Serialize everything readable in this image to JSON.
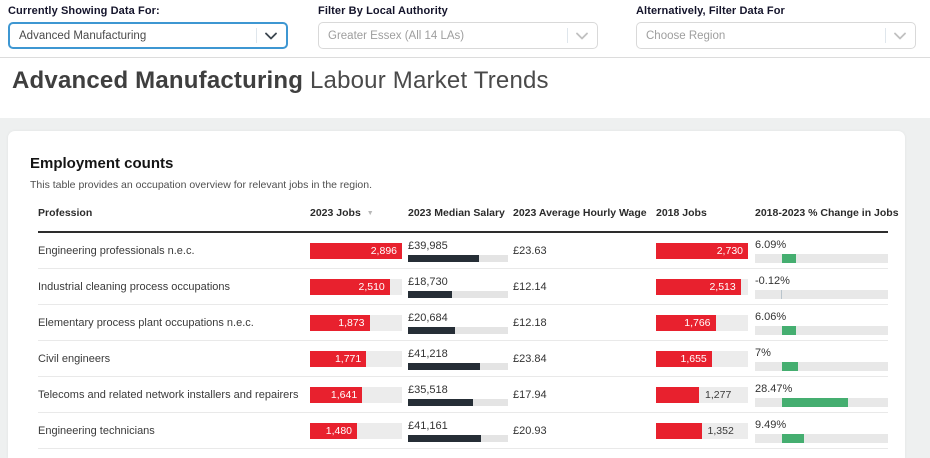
{
  "filters": [
    {
      "label": "Currently Showing Data For:",
      "value": "Advanced Manufacturing"
    },
    {
      "label": "Filter By Local Authority",
      "value": "Greater Essex (All 14 LAs)"
    },
    {
      "label": "Alternatively, Filter Data For",
      "value": "Choose Region"
    }
  ],
  "page_title": {
    "bold": "Advanced Manufacturing",
    "rest": " Labour Market Trends"
  },
  "section": {
    "heading": "Employment counts",
    "subheading": "This table provides an occupation overview for relevant jobs in the region."
  },
  "table": {
    "columns": {
      "profession": "Profession",
      "jobs2023": "2023 Jobs",
      "salary": "2023 Median Salary",
      "hourly": "2023 Average Hourly Wage",
      "jobs2018": "2018 Jobs",
      "change": "2018-2023 % Change in Jobs"
    },
    "sorted_by": "2023 Jobs",
    "sort_direction": "descending",
    "rows": [
      {
        "profession": "Engineering professionals n.e.c.",
        "jobs2023": {
          "label": "2,896",
          "pct": 100,
          "inside": true
        },
        "salary": {
          "label": "£39,985",
          "pct": 71
        },
        "hourly": "£23.63",
        "jobs2018": {
          "label": "2,730",
          "pct": 100,
          "inside": true
        },
        "change": {
          "label": "6.09%",
          "width_pct": 10.7,
          "negative": false
        }
      },
      {
        "profession": "Industrial cleaning process occupations",
        "jobs2023": {
          "label": "2,510",
          "pct": 86.7,
          "inside": true
        },
        "salary": {
          "label": "£18,730",
          "pct": 44
        },
        "hourly": "£12.14",
        "jobs2018": {
          "label": "2,513",
          "pct": 92.1,
          "inside": true
        },
        "change": {
          "label": "-0.12%",
          "width_pct": 0.8,
          "negative": true
        }
      },
      {
        "profession": "Elementary process plant occupations n.e.c.",
        "jobs2023": {
          "label": "1,873",
          "pct": 64.7,
          "inside": true
        },
        "salary": {
          "label": "£20,684",
          "pct": 47
        },
        "hourly": "£12.18",
        "jobs2018": {
          "label": "1,766",
          "pct": 64.7,
          "inside": true
        },
        "change": {
          "label": "6.06%",
          "width_pct": 10.6,
          "negative": false
        }
      },
      {
        "profession": "Civil engineers",
        "jobs2023": {
          "label": "1,771",
          "pct": 61.1,
          "inside": true
        },
        "salary": {
          "label": "£41,218",
          "pct": 72
        },
        "hourly": "£23.84",
        "jobs2018": {
          "label": "1,655",
          "pct": 60.6,
          "inside": true
        },
        "change": {
          "label": "7%",
          "width_pct": 12.3,
          "negative": false
        }
      },
      {
        "profession": "Telecoms and related network installers and repairers",
        "jobs2023": {
          "label": "1,641",
          "pct": 56.7,
          "inside": true
        },
        "salary": {
          "label": "£35,518",
          "pct": 65
        },
        "hourly": "£17.94",
        "jobs2018": {
          "label": "1,277",
          "pct": 46.8,
          "inside": false
        },
        "change": {
          "label": "28.47%",
          "width_pct": 49.8,
          "negative": false
        }
      },
      {
        "profession": "Engineering technicians",
        "jobs2023": {
          "label": "1,480",
          "pct": 51.1,
          "inside": true
        },
        "salary": {
          "label": "£41,161",
          "pct": 73
        },
        "hourly": "£20.93",
        "jobs2018": {
          "label": "1,352",
          "pct": 49.5,
          "inside": false
        },
        "change": {
          "label": "9.49%",
          "width_pct": 16.6,
          "negative": false
        }
      }
    ],
    "change_bar_zero_offset_pct": 20
  },
  "colors": {
    "jobs_bar": "#e8212e",
    "salary_bar": "#262e36",
    "change_bar": "#45ae70",
    "active_select_border": "#3e97d2"
  }
}
